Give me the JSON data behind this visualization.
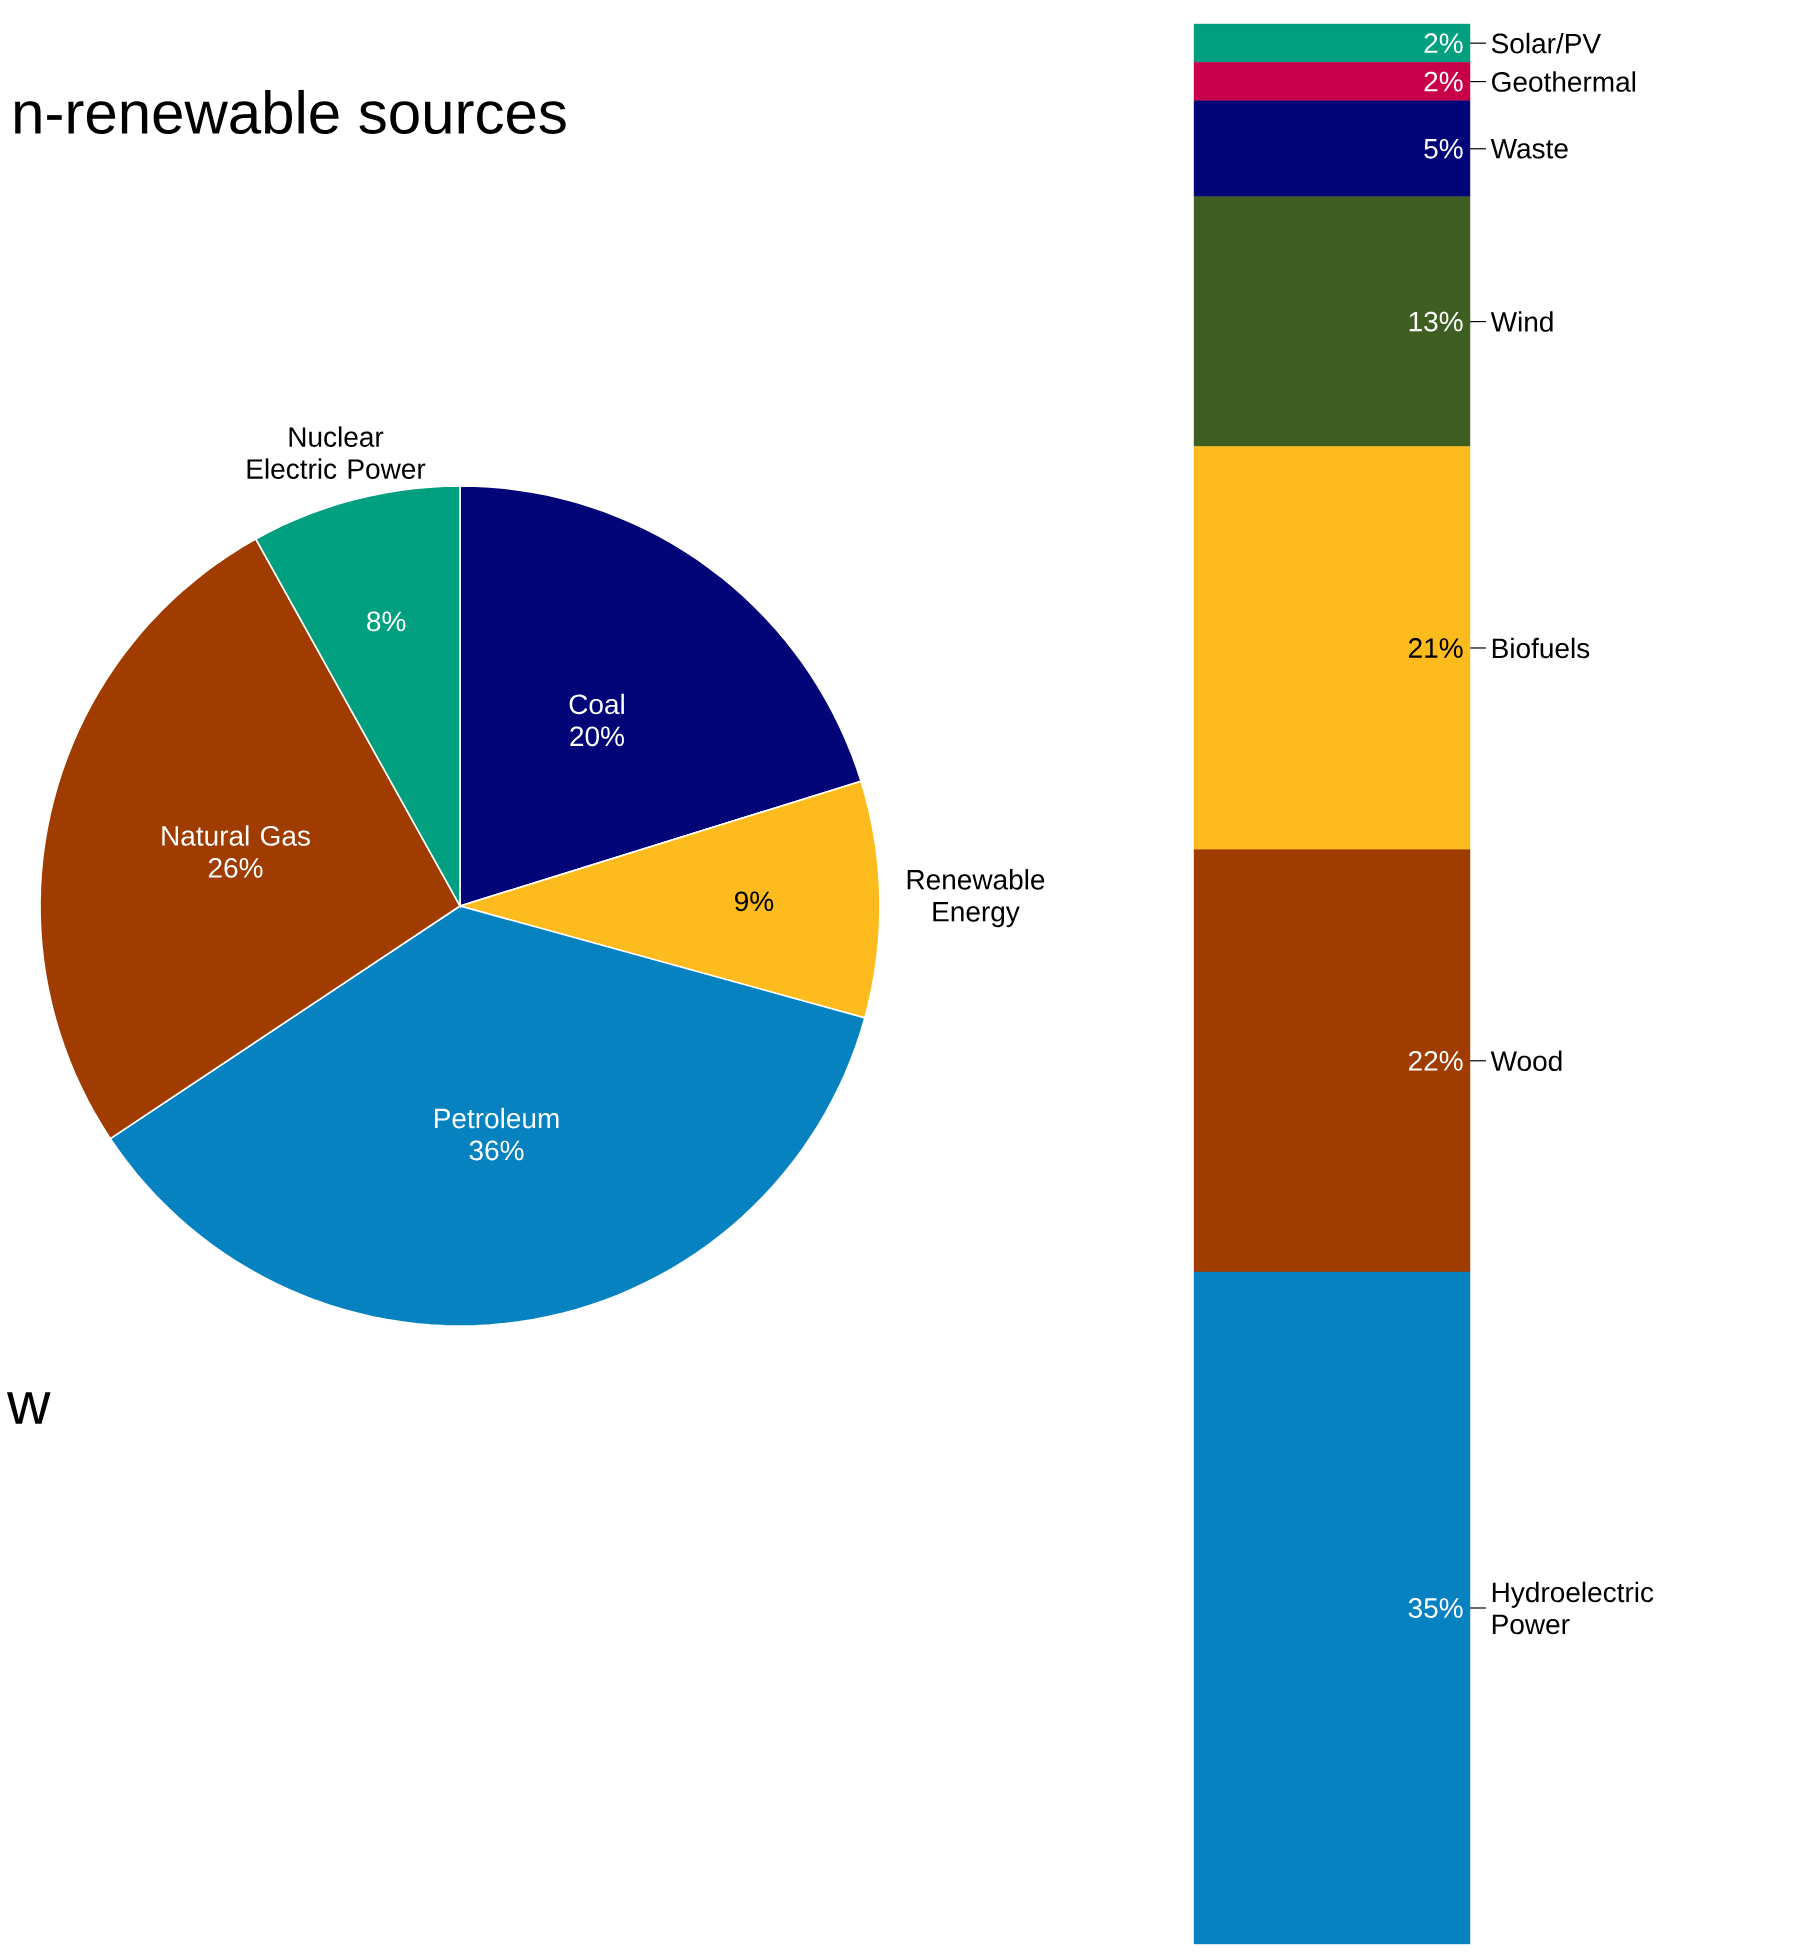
{
  "chart_data": [
    {
      "type": "pie",
      "title": "n-renewable sources",
      "annotations": [
        "w"
      ],
      "categories": [
        "Coal",
        "Renewable Energy",
        "Petroleum",
        "Natural Gas",
        "Nuclear Electric Power"
      ],
      "values": [
        20,
        9,
        36,
        26,
        8
      ],
      "value_labels": [
        "20%",
        "9%",
        "36%",
        "26%",
        "8%"
      ],
      "colors": [
        "#020577",
        "#fdbb1e",
        "#0682c1",
        "#a03c00",
        "#009f7f"
      ]
    },
    {
      "type": "bar",
      "stacked": true,
      "categories": [
        null
      ],
      "series": [
        {
          "name": "Hydroelectric Power",
          "color": "#0682c1",
          "values": [
            35
          ],
          "value_labels": [
            "35%"
          ]
        },
        {
          "name": "Wood",
          "color": "#a03c00",
          "values": [
            22
          ],
          "value_labels": [
            "22%"
          ]
        },
        {
          "name": "Biofuels",
          "color": "#fdbb1e",
          "values": [
            21
          ],
          "value_labels": [
            "21%"
          ]
        },
        {
          "name": "Wind",
          "color": "#3f5f22",
          "values": [
            13
          ],
          "value_labels": [
            "13%"
          ]
        },
        {
          "name": "Waste",
          "color": "#020577",
          "values": [
            5
          ],
          "value_labels": [
            "5%"
          ]
        },
        {
          "name": "Geothermal",
          "color": "#c8004a",
          "values": [
            2
          ],
          "value_labels": [
            "2%"
          ]
        },
        {
          "name": "Solar/PV",
          "color": "#009f7f",
          "values": [
            2
          ],
          "value_labels": [
            "2%"
          ]
        }
      ]
    }
  ]
}
